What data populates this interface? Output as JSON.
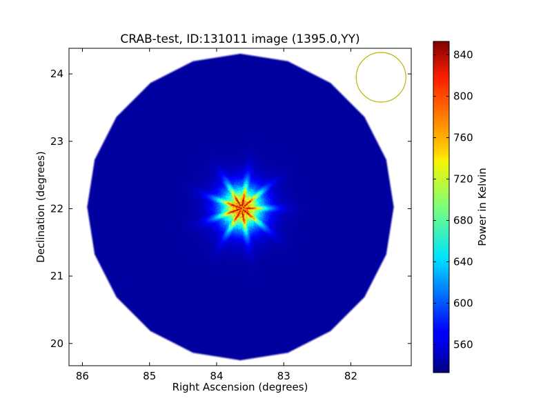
{
  "chart_data": {
    "type": "heatmap",
    "title": "CRAB-test, ID:131011 image (1395.0,YY)",
    "xlabel": "Right Ascension (degrees)",
    "ylabel": "Declination (degrees)",
    "xlim": [
      86.2,
      81.1
    ],
    "ylim": [
      19.67,
      24.38
    ],
    "x_ticks": [
      86,
      85,
      84,
      83,
      82
    ],
    "y_ticks": [
      20,
      21,
      22,
      23,
      24
    ],
    "x_tick_labels": [
      "86",
      "85",
      "84",
      "83",
      "82"
    ],
    "y_tick_labels": [
      "20",
      "21",
      "22",
      "23",
      "24"
    ],
    "colorbar": {
      "label": "Power in Kelvin",
      "range": [
        533,
        853
      ],
      "ticks": [
        560,
        600,
        640,
        680,
        720,
        760,
        800,
        840
      ],
      "tick_labels": [
        "560",
        "600",
        "640",
        "680",
        "720",
        "760",
        "800",
        "840"
      ],
      "colormap": "jet"
    },
    "field": {
      "center_ra": 83.65,
      "center_dec": 22.03,
      "radius_deg": 2.3,
      "background_kelvin": 543
    },
    "source": {
      "ra": 83.63,
      "dec": 22.01,
      "peak_kelvin": 835,
      "core_radius_deg": 0.35,
      "spoke_radius_deg": 0.65,
      "n_spokes": 18
    },
    "beam": {
      "ra": 81.55,
      "dec": 23.95,
      "radius_deg": 0.37,
      "color": "#c0b400"
    },
    "grid": false
  }
}
